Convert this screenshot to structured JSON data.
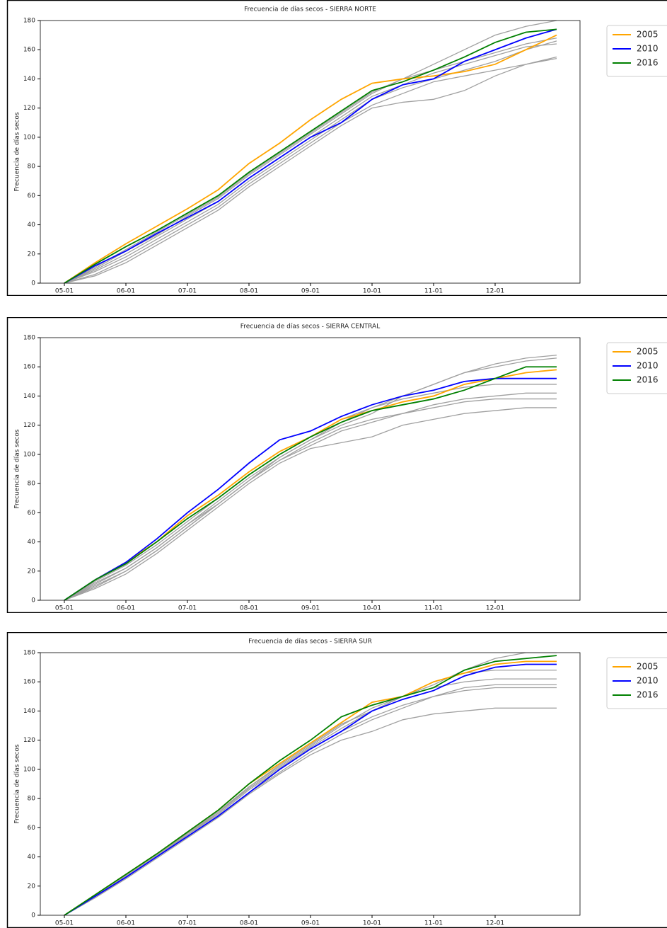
{
  "chart_data": [
    {
      "type": "line",
      "title": "Frecuencia de días secos - SIERRA NORTE",
      "ylabel": "Frecuencia de días secos",
      "categories": [
        "05-01",
        null,
        "06-01",
        null,
        "07-01",
        null,
        "08-01",
        null,
        "09-01",
        null,
        "10-01",
        null,
        "11-01",
        null,
        "12-01",
        null,
        null
      ],
      "ylim": [
        0,
        180
      ],
      "yticks": [
        0,
        20,
        40,
        60,
        80,
        100,
        120,
        140,
        160,
        180
      ],
      "legend": "right",
      "series": [
        {
          "color": "#a0a0a0",
          "values": [
            0,
            10,
            22,
            33,
            46,
            58,
            74,
            88,
            102,
            116,
            130,
            140,
            150,
            160,
            170,
            176,
            180
          ]
        },
        {
          "color": "#a0a0a0",
          "values": [
            0,
            8,
            18,
            30,
            42,
            54,
            70,
            84,
            98,
            112,
            126,
            134,
            140,
            146,
            152,
            160,
            166
          ]
        },
        {
          "color": "#a0a0a0",
          "values": [
            0,
            5,
            14,
            26,
            38,
            50,
            66,
            80,
            94,
            108,
            120,
            124,
            126,
            132,
            142,
            150,
            155
          ]
        },
        {
          "color": "#a0a0a0",
          "values": [
            0,
            9,
            20,
            32,
            44,
            56,
            72,
            86,
            100,
            114,
            128,
            136,
            144,
            150,
            156,
            162,
            164
          ]
        },
        {
          "color": "#a0a0a0",
          "values": [
            0,
            6,
            16,
            28,
            40,
            52,
            68,
            82,
            96,
            110,
            122,
            130,
            138,
            142,
            146,
            150,
            154
          ]
        },
        {
          "color": "#a0a0a0",
          "values": [
            0,
            11,
            23,
            35,
            47,
            59,
            75,
            89,
            103,
            117,
            131,
            140,
            146,
            152,
            158,
            164,
            168
          ]
        },
        {
          "name": "2005",
          "color": "#ffa500",
          "values": [
            0,
            14,
            27,
            39,
            51,
            64,
            82,
            96,
            112,
            126,
            137,
            140,
            142,
            145,
            150,
            160,
            170
          ]
        },
        {
          "name": "2010",
          "color": "#0000ff",
          "values": [
            0,
            12,
            22,
            34,
            45,
            56,
            72,
            86,
            100,
            110,
            126,
            136,
            140,
            152,
            160,
            168,
            174
          ]
        },
        {
          "name": "2016",
          "color": "#008000",
          "values": [
            0,
            13,
            25,
            36,
            48,
            60,
            76,
            90,
            104,
            118,
            132,
            138,
            146,
            155,
            165,
            172,
            174
          ]
        }
      ]
    },
    {
      "type": "line",
      "title": "Frecuencia de días secos - SIERRA CENTRAL",
      "ylabel": "Frecuencia de días secos",
      "categories": [
        "05-01",
        null,
        "06-01",
        null,
        "07-01",
        null,
        "08-01",
        null,
        "09-01",
        null,
        "10-01",
        null,
        "11-01",
        null,
        "12-01",
        null,
        null
      ],
      "ylim": [
        0,
        180
      ],
      "yticks": [
        0,
        20,
        40,
        60,
        80,
        100,
        120,
        140,
        160,
        180
      ],
      "legend": "right",
      "series": [
        {
          "color": "#a0a0a0",
          "values": [
            0,
            12,
            22,
            36,
            52,
            68,
            84,
            98,
            110,
            120,
            128,
            140,
            148,
            156,
            162,
            166,
            168
          ]
        },
        {
          "color": "#a0a0a0",
          "values": [
            0,
            8,
            18,
            32,
            48,
            64,
            80,
            94,
            104,
            108,
            112,
            120,
            124,
            128,
            130,
            132,
            132
          ]
        },
        {
          "color": "#a0a0a0",
          "values": [
            0,
            10,
            20,
            34,
            50,
            66,
            82,
            96,
            108,
            118,
            124,
            128,
            134,
            138,
            140,
            142,
            142
          ]
        },
        {
          "color": "#a0a0a0",
          "values": [
            0,
            11,
            22,
            36,
            52,
            66,
            82,
            98,
            110,
            122,
            132,
            138,
            142,
            146,
            148,
            148,
            148
          ]
        },
        {
          "color": "#a0a0a0",
          "values": [
            0,
            13,
            24,
            38,
            54,
            70,
            86,
            100,
            112,
            124,
            132,
            140,
            148,
            156,
            160,
            164,
            166
          ]
        },
        {
          "color": "#a0a0a0",
          "values": [
            0,
            9,
            20,
            34,
            50,
            66,
            82,
            96,
            106,
            116,
            122,
            128,
            132,
            136,
            138,
            138,
            138
          ]
        },
        {
          "name": "2005",
          "color": "#ffa500",
          "values": [
            0,
            14,
            26,
            40,
            58,
            72,
            88,
            102,
            112,
            124,
            130,
            136,
            140,
            148,
            152,
            156,
            158
          ]
        },
        {
          "name": "2010",
          "color": "#0000ff",
          "values": [
            0,
            14,
            26,
            42,
            60,
            76,
            94,
            110,
            116,
            126,
            134,
            140,
            144,
            150,
            152,
            152,
            152
          ]
        },
        {
          "name": "2016",
          "color": "#008000",
          "values": [
            0,
            14,
            25,
            40,
            56,
            70,
            86,
            100,
            112,
            122,
            130,
            134,
            138,
            144,
            152,
            160,
            160
          ]
        }
      ]
    },
    {
      "type": "line",
      "title": "Frecuencia de días secos - SIERRA SUR",
      "ylabel": "Frecuencia de días secos",
      "categories": [
        "05-01",
        null,
        "06-01",
        null,
        "07-01",
        null,
        "08-01",
        null,
        "09-01",
        null,
        "10-01",
        null,
        "11-01",
        null,
        "12-01",
        null,
        null
      ],
      "ylim": [
        0,
        180
      ],
      "yticks": [
        0,
        20,
        40,
        60,
        80,
        100,
        120,
        140,
        160,
        180
      ],
      "legend": "right",
      "series": [
        {
          "color": "#a0a0a0",
          "values": [
            0,
            13,
            27,
            41,
            56,
            70,
            88,
            102,
            116,
            130,
            142,
            150,
            158,
            168,
            176,
            180,
            180
          ]
        },
        {
          "color": "#a0a0a0",
          "values": [
            0,
            12,
            25,
            39,
            53,
            67,
            83,
            97,
            110,
            120,
            126,
            134,
            138,
            140,
            142,
            142,
            142
          ]
        },
        {
          "color": "#a0a0a0",
          "values": [
            0,
            13,
            26,
            40,
            55,
            69,
            86,
            100,
            114,
            126,
            136,
            144,
            150,
            154,
            156,
            156,
            156
          ]
        },
        {
          "color": "#a0a0a0",
          "values": [
            0,
            13,
            27,
            41,
            56,
            71,
            88,
            103,
            117,
            131,
            140,
            150,
            156,
            160,
            162,
            162,
            162
          ]
        },
        {
          "color": "#a0a0a0",
          "values": [
            0,
            12,
            26,
            40,
            54,
            68,
            84,
            98,
            112,
            124,
            134,
            142,
            150,
            156,
            158,
            158,
            158
          ]
        },
        {
          "color": "#a0a0a0",
          "values": [
            0,
            13,
            27,
            41,
            55,
            70,
            87,
            101,
            115,
            128,
            140,
            150,
            160,
            166,
            168,
            168,
            168
          ]
        },
        {
          "name": "2005",
          "color": "#ffa500",
          "values": [
            0,
            14,
            28,
            42,
            57,
            72,
            90,
            104,
            118,
            132,
            146,
            150,
            160,
            166,
            172,
            174,
            174
          ]
        },
        {
          "name": "2010",
          "color": "#0000ff",
          "values": [
            0,
            13,
            26,
            40,
            54,
            68,
            84,
            100,
            114,
            126,
            140,
            148,
            154,
            164,
            170,
            172,
            172
          ]
        },
        {
          "name": "2016",
          "color": "#008000",
          "values": [
            0,
            14,
            28,
            42,
            57,
            72,
            90,
            106,
            120,
            136,
            144,
            150,
            156,
            168,
            174,
            176,
            178
          ]
        }
      ]
    }
  ]
}
